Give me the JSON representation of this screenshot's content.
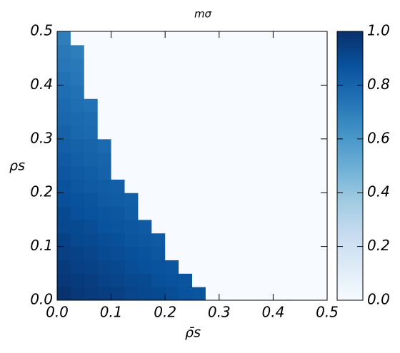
{
  "chart_data": {
    "type": "heatmap",
    "title": "mσ",
    "xlabel": "ρ̄s",
    "ylabel": "ρs",
    "colormap": "Blues",
    "x": [
      0.0125,
      0.0375,
      0.0625,
      0.0875,
      0.1125,
      0.1375,
      0.1625,
      0.1875,
      0.2125,
      0.2375,
      0.2625,
      0.2875,
      0.3125,
      0.3375,
      0.3625,
      0.3875,
      0.4125,
      0.4375,
      0.4625,
      0.4875
    ],
    "y": [
      0.0125,
      0.0375,
      0.0625,
      0.0875,
      0.1125,
      0.1375,
      0.1625,
      0.1875,
      0.2125,
      0.2375,
      0.2625,
      0.2875,
      0.3125,
      0.3375,
      0.3625,
      0.3875,
      0.4125,
      0.4375,
      0.4625,
      0.4875
    ],
    "z": [
      [
        0.99,
        0.97,
        0.96,
        0.95,
        0.94,
        0.92,
        0.91,
        0.9,
        0.89,
        0.87,
        0.86,
        0,
        0,
        0,
        0,
        0,
        0,
        0,
        0,
        0
      ],
      [
        0.97,
        0.96,
        0.95,
        0.93,
        0.92,
        0.91,
        0.9,
        0.88,
        0.87,
        0.86,
        0,
        0,
        0,
        0,
        0,
        0,
        0,
        0,
        0,
        0
      ],
      [
        0.96,
        0.94,
        0.93,
        0.92,
        0.91,
        0.89,
        0.88,
        0.87,
        0.86,
        0,
        0,
        0,
        0,
        0,
        0,
        0,
        0,
        0,
        0,
        0
      ],
      [
        0.94,
        0.93,
        0.92,
        0.9,
        0.89,
        0.88,
        0.87,
        0.85,
        0,
        0,
        0,
        0,
        0,
        0,
        0,
        0,
        0,
        0,
        0,
        0
      ],
      [
        0.93,
        0.91,
        0.9,
        0.89,
        0.88,
        0.86,
        0.85,
        0.84,
        0,
        0,
        0,
        0,
        0,
        0,
        0,
        0,
        0,
        0,
        0,
        0
      ],
      [
        0.91,
        0.9,
        0.89,
        0.87,
        0.86,
        0.85,
        0.84,
        0,
        0,
        0,
        0,
        0,
        0,
        0,
        0,
        0,
        0,
        0,
        0,
        0
      ],
      [
        0.9,
        0.88,
        0.87,
        0.86,
        0.85,
        0.83,
        0,
        0,
        0,
        0,
        0,
        0,
        0,
        0,
        0,
        0,
        0,
        0,
        0,
        0
      ],
      [
        0.88,
        0.87,
        0.86,
        0.84,
        0.83,
        0.82,
        0,
        0,
        0,
        0,
        0,
        0,
        0,
        0,
        0,
        0,
        0,
        0,
        0,
        0
      ],
      [
        0.87,
        0.85,
        0.84,
        0.83,
        0.82,
        0,
        0,
        0,
        0,
        0,
        0,
        0,
        0,
        0,
        0,
        0,
        0,
        0,
        0,
        0
      ],
      [
        0.85,
        0.84,
        0.83,
        0.81,
        0,
        0,
        0,
        0,
        0,
        0,
        0,
        0,
        0,
        0,
        0,
        0,
        0,
        0,
        0,
        0
      ],
      [
        0.84,
        0.82,
        0.81,
        0.8,
        0,
        0,
        0,
        0,
        0,
        0,
        0,
        0,
        0,
        0,
        0,
        0,
        0,
        0,
        0,
        0
      ],
      [
        0.82,
        0.81,
        0.8,
        0.78,
        0,
        0,
        0,
        0,
        0,
        0,
        0,
        0,
        0,
        0,
        0,
        0,
        0,
        0,
        0,
        0
      ],
      [
        0.81,
        0.79,
        0.78,
        0,
        0,
        0,
        0,
        0,
        0,
        0,
        0,
        0,
        0,
        0,
        0,
        0,
        0,
        0,
        0,
        0
      ],
      [
        0.79,
        0.78,
        0.77,
        0,
        0,
        0,
        0,
        0,
        0,
        0,
        0,
        0,
        0,
        0,
        0,
        0,
        0,
        0,
        0,
        0
      ],
      [
        0.78,
        0.76,
        0.75,
        0,
        0,
        0,
        0,
        0,
        0,
        0,
        0,
        0,
        0,
        0,
        0,
        0,
        0,
        0,
        0,
        0
      ],
      [
        0.76,
        0.75,
        0,
        0,
        0,
        0,
        0,
        0,
        0,
        0,
        0,
        0,
        0,
        0,
        0,
        0,
        0,
        0,
        0,
        0
      ],
      [
        0.75,
        0.73,
        0,
        0,
        0,
        0,
        0,
        0,
        0,
        0,
        0,
        0,
        0,
        0,
        0,
        0,
        0,
        0,
        0,
        0
      ],
      [
        0.73,
        0.72,
        0,
        0,
        0,
        0,
        0,
        0,
        0,
        0,
        0,
        0,
        0,
        0,
        0,
        0,
        0,
        0,
        0,
        0
      ],
      [
        0.72,
        0.7,
        0,
        0,
        0,
        0,
        0,
        0,
        0,
        0,
        0,
        0,
        0,
        0,
        0,
        0,
        0,
        0,
        0,
        0
      ],
      [
        0.7,
        0,
        0,
        0,
        0,
        0,
        0,
        0,
        0,
        0,
        0,
        0,
        0,
        0,
        0,
        0,
        0,
        0,
        0,
        0
      ]
    ],
    "xlim": [
      0,
      0.5
    ],
    "ylim": [
      0,
      0.5
    ],
    "clim": [
      0,
      1
    ],
    "xticks": [
      {
        "value": 0,
        "label": "0.0"
      },
      0.1,
      0.2,
      0.3,
      0.4,
      0.5
    ],
    "yticks": [
      {
        "value": 0,
        "label": "0.0"
      },
      0.1,
      0.2,
      0.3,
      0.4,
      0.5
    ],
    "cticks": [
      {
        "value": 0,
        "label": "0.0"
      },
      0.2,
      0.4,
      0.6,
      0.8,
      {
        "value": 1,
        "label": "1.0"
      }
    ]
  }
}
